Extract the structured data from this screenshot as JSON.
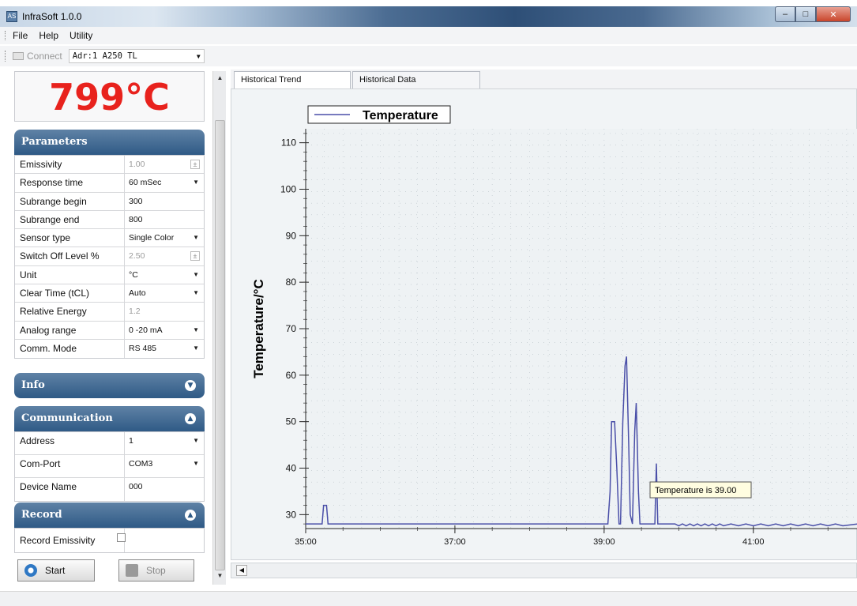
{
  "window": {
    "title": "InfraSoft 1.0.0",
    "icon_label": "AS"
  },
  "menu": {
    "items": [
      "File",
      "Help",
      "Utility"
    ]
  },
  "toolbar": {
    "connect_label": "Connect",
    "address_value": "Adr:1 A250 TL"
  },
  "readout": {
    "temperature": "799°C",
    "color": "#e8221d"
  },
  "parameters": {
    "title": "Parameters",
    "rows": [
      {
        "label": "Emissivity",
        "value": "1.00",
        "control": "spin",
        "disabled": true
      },
      {
        "label": "Response time",
        "value": "60 mSec",
        "control": "dropdown"
      },
      {
        "label": "Subrange begin",
        "value": "300",
        "control": "text"
      },
      {
        "label": "Subrange end",
        "value": "800",
        "control": "text"
      },
      {
        "label": "Sensor type",
        "value": "Single Color",
        "control": "dropdown"
      },
      {
        "label": "Switch Off Level %",
        "value": "2.50",
        "control": "spin",
        "disabled": true
      },
      {
        "label": "Unit",
        "value": "°C",
        "control": "dropdown"
      },
      {
        "label": "Clear Time (tCL)",
        "value": "Auto",
        "control": "dropdown"
      },
      {
        "label": "Relative Energy",
        "value": "1.2",
        "control": "text",
        "disabled": true
      },
      {
        "label": "Analog range",
        "value": "0 -20 mA",
        "control": "dropdown"
      },
      {
        "label": "Comm. Mode",
        "value": "RS 485",
        "control": "dropdown"
      }
    ]
  },
  "info": {
    "title": "Info"
  },
  "communication": {
    "title": "Communication",
    "rows": [
      {
        "label": "Address",
        "value": "1",
        "control": "dropdown"
      },
      {
        "label": "Com-Port",
        "value": "COM3",
        "control": "dropdown"
      },
      {
        "label": "Device Name",
        "value": "000",
        "control": "text"
      }
    ]
  },
  "record": {
    "title": "Record",
    "emissivity_label": "Record Emissivity",
    "start_label": "Start",
    "stop_label": "Stop"
  },
  "tabs": [
    {
      "label": "Historical Trend",
      "active": true
    },
    {
      "label": "Historical Data",
      "active": false
    }
  ],
  "chart_data": {
    "type": "line",
    "ylabel": "Temperature/°C",
    "xlabel": "",
    "legend": [
      "Temperature"
    ],
    "legend_position": "top-left",
    "grid": true,
    "ylim": [
      27,
      113
    ],
    "xlim": [
      35.0,
      42.4
    ],
    "y_ticks": [
      30,
      40,
      50,
      60,
      70,
      80,
      90,
      100,
      110
    ],
    "x_ticks": [
      "35:00",
      "37:00",
      "39:00",
      "41:00"
    ],
    "x_tick_values": [
      35,
      37,
      39,
      41
    ],
    "tooltip": "Temperature  is 39.00",
    "series": [
      {
        "name": "Temperature",
        "color": "#4a4fa8",
        "points": [
          [
            35.0,
            28
          ],
          [
            35.22,
            28
          ],
          [
            35.24,
            32
          ],
          [
            35.28,
            32
          ],
          [
            35.3,
            28
          ],
          [
            39.05,
            28
          ],
          [
            39.08,
            35
          ],
          [
            39.1,
            50
          ],
          [
            39.14,
            50
          ],
          [
            39.17,
            40
          ],
          [
            39.2,
            28
          ],
          [
            39.22,
            28
          ],
          [
            39.25,
            50
          ],
          [
            39.28,
            62
          ],
          [
            39.3,
            64
          ],
          [
            39.33,
            45
          ],
          [
            39.35,
            30
          ],
          [
            39.38,
            28
          ],
          [
            39.41,
            48
          ],
          [
            39.43,
            54
          ],
          [
            39.46,
            35
          ],
          [
            39.48,
            28
          ],
          [
            39.68,
            28
          ],
          [
            39.7,
            41
          ],
          [
            39.72,
            28
          ],
          [
            39.95,
            28
          ],
          [
            40.0,
            27.6
          ],
          [
            40.05,
            28
          ],
          [
            40.1,
            27.6
          ],
          [
            40.15,
            28
          ],
          [
            40.2,
            27.6
          ],
          [
            40.25,
            28
          ],
          [
            40.3,
            27.6
          ],
          [
            40.35,
            28
          ],
          [
            40.4,
            27.6
          ],
          [
            40.45,
            28
          ],
          [
            40.5,
            27.6
          ],
          [
            40.55,
            28
          ],
          [
            40.6,
            27.6
          ],
          [
            40.7,
            28
          ],
          [
            40.8,
            27.6
          ],
          [
            40.9,
            28
          ],
          [
            41.0,
            27.6
          ],
          [
            41.1,
            28
          ],
          [
            41.2,
            27.6
          ],
          [
            41.3,
            28
          ],
          [
            41.4,
            27.6
          ],
          [
            41.5,
            28
          ],
          [
            41.6,
            27.6
          ],
          [
            41.7,
            28
          ],
          [
            41.8,
            27.6
          ],
          [
            41.9,
            28
          ],
          [
            42.0,
            27.6
          ],
          [
            42.1,
            28
          ],
          [
            42.2,
            27.6
          ],
          [
            42.4,
            28
          ]
        ]
      }
    ]
  }
}
